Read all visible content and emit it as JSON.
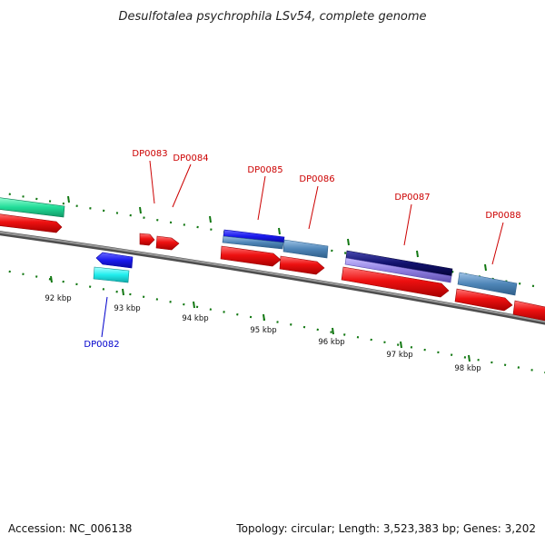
{
  "title": "Desulfotalea psychrophila LSv54, complete genome",
  "accession": "Accession: NC_006138",
  "topology": "Topology: circular; Length: 3,523,383 bp; Genes: 3,202",
  "scale_labels": [
    "92 kbp",
    "93 kbp",
    "94 kbp",
    "95 kbp",
    "96 kbp",
    "97 kbp",
    "98 kbp"
  ],
  "gene_labels": [
    {
      "text": "DP0082",
      "color": "#0000cc"
    },
    {
      "text": "DP0083",
      "color": "#cc0000"
    },
    {
      "text": "DP0084",
      "color": "#cc0000"
    },
    {
      "text": "DP0085",
      "color": "#cc0000"
    },
    {
      "text": "DP0086",
      "color": "#cc0000"
    },
    {
      "text": "DP0087",
      "color": "#cc0000"
    },
    {
      "text": "DP0088",
      "color": "#cc0000"
    }
  ],
  "colors": {
    "backbone": "#808080",
    "cds_red": "#ee1111",
    "cds_blue": "#1a1aee",
    "cds_cyan": "#22eeee",
    "cds_green": "#22dd99",
    "cds_steelblue": "#4f86b8",
    "cds_navy": "#12126e",
    "cds_lavender": "#8f7fe0",
    "tick_green": "#117711"
  }
}
